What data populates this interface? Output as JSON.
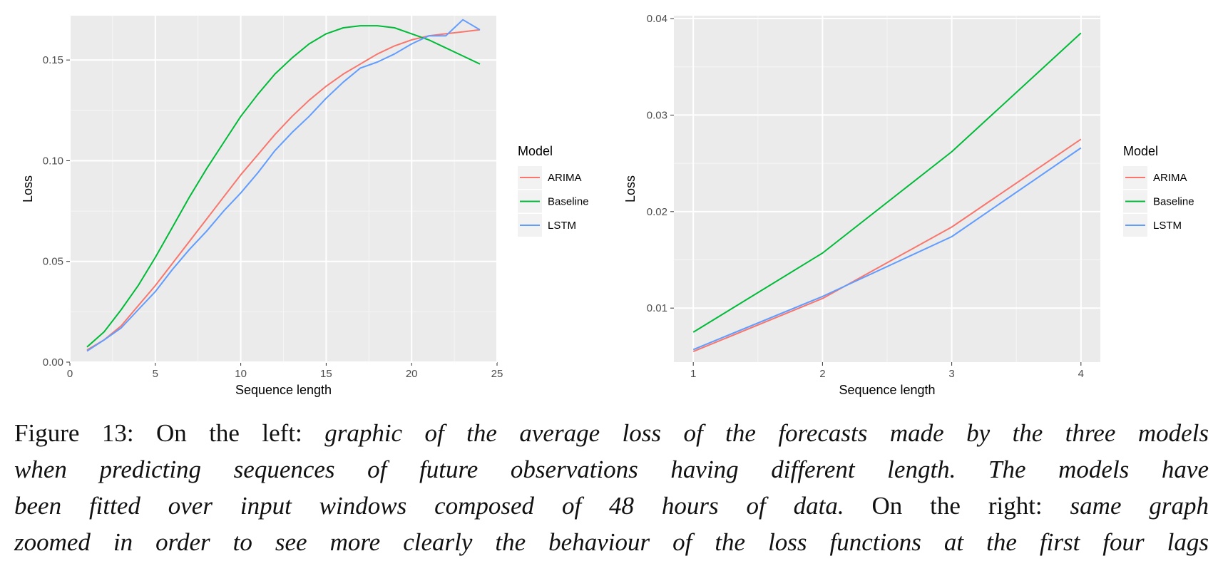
{
  "chart_data": [
    {
      "type": "line",
      "title": "",
      "xlabel": "Sequence length",
      "ylabel": "Loss",
      "xlim": [
        0,
        25
      ],
      "ylim": [
        0,
        0.172
      ],
      "xticks": [
        0,
        5,
        10,
        15,
        20,
        25
      ],
      "xtick_labels": [
        "0",
        "5",
        "10",
        "15",
        "20",
        "25"
      ],
      "yticks": [
        0,
        0.05,
        0.1,
        0.15
      ],
      "ytick_labels": [
        "0.00",
        "0.05",
        "0.10",
        "0.15"
      ],
      "legend": {
        "title": "Model",
        "position": "right",
        "entries": [
          "ARIMA",
          "Baseline",
          "LSTM"
        ]
      },
      "series": [
        {
          "name": "ARIMA",
          "color": "#F8766D",
          "x": [
            1,
            2,
            3,
            4,
            5,
            6,
            7,
            8,
            9,
            10,
            11,
            12,
            13,
            14,
            15,
            16,
            17,
            18,
            19,
            20,
            21,
            22,
            23,
            24
          ],
          "values": [
            0.006,
            0.011,
            0.018,
            0.028,
            0.038,
            0.049,
            0.06,
            0.071,
            0.082,
            0.093,
            0.103,
            0.113,
            0.122,
            0.13,
            0.137,
            0.143,
            0.148,
            0.153,
            0.157,
            0.16,
            0.162,
            0.163,
            0.164,
            0.165
          ]
        },
        {
          "name": "Baseline",
          "color": "#00BA38",
          "x": [
            1,
            2,
            3,
            4,
            5,
            6,
            7,
            8,
            9,
            10,
            11,
            12,
            13,
            14,
            15,
            16,
            17,
            18,
            19,
            20,
            21,
            22,
            23,
            24
          ],
          "values": [
            0.0075,
            0.015,
            0.026,
            0.038,
            0.052,
            0.067,
            0.082,
            0.096,
            0.109,
            0.122,
            0.133,
            0.143,
            0.151,
            0.158,
            0.163,
            0.166,
            0.167,
            0.167,
            0.166,
            0.163,
            0.16,
            0.156,
            0.152,
            0.148
          ]
        },
        {
          "name": "LSTM",
          "color": "#619CFF",
          "x": [
            1,
            2,
            3,
            4,
            5,
            6,
            7,
            8,
            9,
            10,
            11,
            12,
            13,
            14,
            15,
            16,
            17,
            18,
            19,
            20,
            21,
            22,
            23,
            24
          ],
          "values": [
            0.0055,
            0.011,
            0.017,
            0.026,
            0.035,
            0.046,
            0.056,
            0.065,
            0.075,
            0.084,
            0.094,
            0.105,
            0.114,
            0.122,
            0.131,
            0.139,
            0.146,
            0.149,
            0.153,
            0.158,
            0.162,
            0.162,
            0.17,
            0.165
          ]
        }
      ]
    },
    {
      "type": "line",
      "title": "",
      "xlabel": "Sequence length",
      "ylabel": "Loss",
      "xlim": [
        0.85,
        4.15
      ],
      "ylim": [
        0.0044,
        0.0403
      ],
      "xticks": [
        1,
        2,
        3,
        4
      ],
      "xtick_labels": [
        "1",
        "2",
        "3",
        "4"
      ],
      "yticks": [
        0.01,
        0.02,
        0.03,
        0.04
      ],
      "ytick_labels": [
        "0.01",
        "0.02",
        "0.03",
        "0.04"
      ],
      "legend": {
        "title": "Model",
        "position": "right",
        "entries": [
          "ARIMA",
          "Baseline",
          "LSTM"
        ]
      },
      "series": [
        {
          "name": "ARIMA",
          "color": "#F8766D",
          "x": [
            1,
            2,
            3,
            4
          ],
          "values": [
            0.0055,
            0.011,
            0.0184,
            0.0275
          ]
        },
        {
          "name": "Baseline",
          "color": "#00BA38",
          "x": [
            1,
            2,
            3,
            4
          ],
          "values": [
            0.0075,
            0.0157,
            0.0262,
            0.0385
          ]
        },
        {
          "name": "LSTM",
          "color": "#619CFF",
          "x": [
            1,
            2,
            3,
            4
          ],
          "values": [
            0.0057,
            0.0112,
            0.0174,
            0.0266
          ]
        }
      ]
    }
  ],
  "caption": {
    "line1_label": "Figure 13: On the left: ",
    "line1_italic": "graphic of the average loss of the forecasts made by the three models",
    "line2_italic": "when predicting sequences of future observations having different length.  The models have",
    "line3_italic": "been fitted over input windows composed of 48 hours of data.",
    "line3_label": "  On the right:  ",
    "line3_italic2": "same graph",
    "line4_italic": "zoomed in order to see more clearly the behaviour of the loss functions at the first four lags"
  }
}
